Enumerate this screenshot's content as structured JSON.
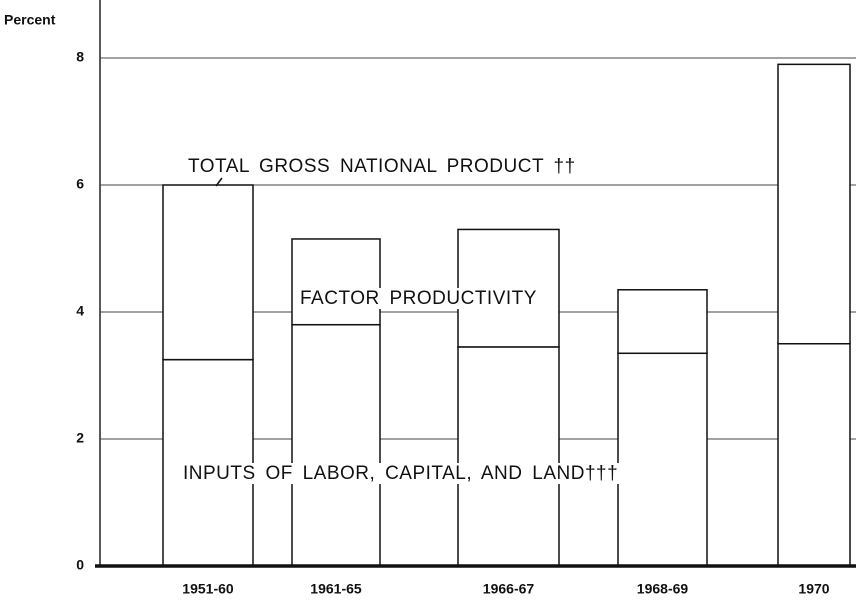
{
  "chart_data": {
    "type": "stacked_bar",
    "y_axis_label": "Percent",
    "categories": [
      "1951-60",
      "1961-65",
      "1966-67",
      "1968-69",
      "1970"
    ],
    "series": [
      {
        "values": [
          3.25,
          3.8,
          3.45,
          3.35,
          3.5
        ],
        "color": "#ffffff"
      },
      {
        "values": [
          2.75,
          1.35,
          1.85,
          1.0,
          4.4
        ],
        "color": "#ffffff"
      }
    ],
    "annotations": [
      "TOTAL GROSS NATIONAL PRODUCT ††",
      "FACTOR PRODUCTIVITY",
      "INPUTS OF LABOR, CAPITAL, AND LAND†††"
    ],
    "ylim": [
      0,
      8
    ],
    "yticks": [
      0,
      2,
      4,
      6,
      8
    ],
    "grid": true
  }
}
